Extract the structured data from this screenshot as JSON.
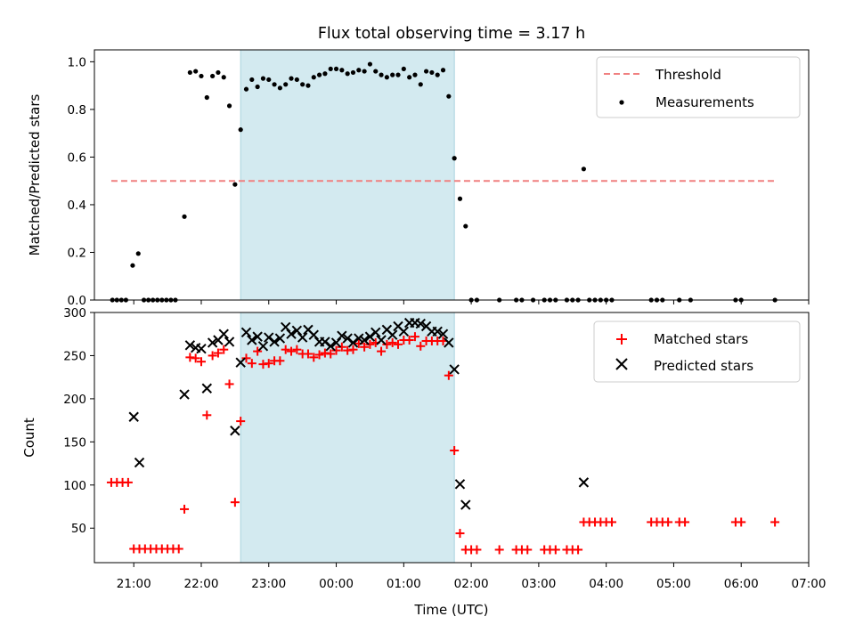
{
  "chart_data": [
    {
      "type": "scatter",
      "title": "Flux total observing time = 3.17 h",
      "xlabel": "",
      "ylabel": "Matched/Predicted stars",
      "ylim": [
        0,
        1.05
      ],
      "xlim": [
        "20:25",
        "07:00"
      ],
      "yticks": [
        "0.0",
        "0.2",
        "0.4",
        "0.6",
        "0.8",
        "1.0"
      ],
      "grid": false,
      "legend_position": "top-right",
      "observing_window": [
        "22:35",
        "01:45"
      ],
      "observing_window_color": "#d3eaf0",
      "threshold": {
        "name": "Threshold",
        "y": 0.5,
        "x_range": [
          "20:40",
          "06:30"
        ],
        "color": "#f08080",
        "style": "dashed"
      },
      "series": [
        {
          "name": "Measurements",
          "color": "#000000",
          "marker": "dot",
          "points": [
            [
              "20:41",
              0.0
            ],
            [
              "20:45",
              0.0
            ],
            [
              "20:49",
              0.0
            ],
            [
              "20:53",
              0.0
            ],
            [
              "20:59",
              0.145
            ],
            [
              "21:04",
              0.195
            ],
            [
              "21:09",
              0.0
            ],
            [
              "21:13",
              0.0
            ],
            [
              "21:17",
              0.0
            ],
            [
              "21:21",
              0.0
            ],
            [
              "21:25",
              0.0
            ],
            [
              "21:29",
              0.0
            ],
            [
              "21:33",
              0.0
            ],
            [
              "21:37",
              0.0
            ],
            [
              "21:45",
              0.35
            ],
            [
              "21:50",
              0.955
            ],
            [
              "21:55",
              0.96
            ],
            [
              "22:00",
              0.94
            ],
            [
              "22:05",
              0.85
            ],
            [
              "22:10",
              0.94
            ],
            [
              "22:15",
              0.955
            ],
            [
              "22:20",
              0.935
            ],
            [
              "22:25",
              0.815
            ],
            [
              "22:30",
              0.485
            ],
            [
              "22:35",
              0.715
            ],
            [
              "22:40",
              0.885
            ],
            [
              "22:45",
              0.925
            ],
            [
              "22:50",
              0.895
            ],
            [
              "22:55",
              0.93
            ],
            [
              "23:00",
              0.925
            ],
            [
              "23:05",
              0.905
            ],
            [
              "23:10",
              0.89
            ],
            [
              "23:15",
              0.905
            ],
            [
              "23:20",
              0.93
            ],
            [
              "23:25",
              0.925
            ],
            [
              "23:30",
              0.905
            ],
            [
              "23:35",
              0.9
            ],
            [
              "23:40",
              0.935
            ],
            [
              "23:45",
              0.945
            ],
            [
              "23:50",
              0.95
            ],
            [
              "23:55",
              0.97
            ],
            [
              "00:00",
              0.97
            ],
            [
              "00:05",
              0.965
            ],
            [
              "00:10",
              0.95
            ],
            [
              "00:15",
              0.955
            ],
            [
              "00:20",
              0.965
            ],
            [
              "00:25",
              0.96
            ],
            [
              "00:30",
              0.99
            ],
            [
              "00:35",
              0.96
            ],
            [
              "00:40",
              0.945
            ],
            [
              "00:45",
              0.935
            ],
            [
              "00:50",
              0.945
            ],
            [
              "00:55",
              0.945
            ],
            [
              "01:00",
              0.97
            ],
            [
              "01:05",
              0.935
            ],
            [
              "01:10",
              0.945
            ],
            [
              "01:15",
              0.905
            ],
            [
              "01:20",
              0.96
            ],
            [
              "01:25",
              0.955
            ],
            [
              "01:30",
              0.945
            ],
            [
              "01:35",
              0.965
            ],
            [
              "01:40",
              0.855
            ],
            [
              "01:45",
              0.595
            ],
            [
              "01:50",
              0.425
            ],
            [
              "01:55",
              0.31
            ],
            [
              "02:00",
              0.0
            ],
            [
              "02:05",
              0.0
            ],
            [
              "02:25",
              0.0
            ],
            [
              "02:40",
              0.0
            ],
            [
              "02:45",
              0.0
            ],
            [
              "02:55",
              0.0
            ],
            [
              "03:05",
              0.0
            ],
            [
              "03:10",
              0.0
            ],
            [
              "03:15",
              0.0
            ],
            [
              "03:25",
              0.0
            ],
            [
              "03:30",
              0.0
            ],
            [
              "03:35",
              0.0
            ],
            [
              "03:45",
              0.0
            ],
            [
              "03:50",
              0.0
            ],
            [
              "03:55",
              0.0
            ],
            [
              "04:00",
              0.0
            ],
            [
              "04:05",
              0.0
            ],
            [
              "03:40",
              0.55
            ],
            [
              "04:40",
              0.0
            ],
            [
              "04:45",
              0.0
            ],
            [
              "04:50",
              0.0
            ],
            [
              "05:05",
              0.0
            ],
            [
              "05:15",
              0.0
            ],
            [
              "05:55",
              0.0
            ],
            [
              "06:00",
              0.0
            ],
            [
              "06:30",
              0.0
            ]
          ]
        }
      ]
    },
    {
      "type": "scatter",
      "title": "",
      "xlabel": "Time (UTC)",
      "ylabel": "Count",
      "ylim": [
        10,
        300
      ],
      "xlim": [
        "20:25",
        "07:00"
      ],
      "yticks": [
        "50",
        "100",
        "150",
        "200",
        "250",
        "300"
      ],
      "xticks": [
        "21:00",
        "22:00",
        "23:00",
        "00:00",
        "01:00",
        "02:00",
        "03:00",
        "04:00",
        "05:00",
        "06:00",
        "07:00"
      ],
      "grid": false,
      "legend_position": "top-right",
      "observing_window": [
        "22:35",
        "01:45"
      ],
      "observing_window_color": "#d3eaf0",
      "series": [
        {
          "name": "Matched stars",
          "color": "#ff0000",
          "marker": "plus",
          "points": [
            [
              "20:40",
              103
            ],
            [
              "20:45",
              103
            ],
            [
              "20:50",
              103
            ],
            [
              "20:55",
              103
            ],
            [
              "21:00",
              26
            ],
            [
              "21:05",
              26
            ],
            [
              "21:10",
              26
            ],
            [
              "21:15",
              26
            ],
            [
              "21:20",
              26
            ],
            [
              "21:25",
              26
            ],
            [
              "21:30",
              26
            ],
            [
              "21:35",
              26
            ],
            [
              "21:40",
              26
            ],
            [
              "21:45",
              72
            ],
            [
              "21:50",
              248
            ],
            [
              "21:55",
              247
            ],
            [
              "22:00",
              243
            ],
            [
              "22:05",
              181
            ],
            [
              "22:10",
              250
            ],
            [
              "22:15",
              253
            ],
            [
              "22:20",
              257
            ],
            [
              "22:25",
              217
            ],
            [
              "22:30",
              80
            ],
            [
              "22:35",
              174
            ],
            [
              "22:40",
              247
            ],
            [
              "22:45",
              241
            ],
            [
              "22:50",
              255
            ],
            [
              "22:55",
              240
            ],
            [
              "23:00",
              241
            ],
            [
              "23:05",
              244
            ],
            [
              "23:10",
              244
            ],
            [
              "23:15",
              257
            ],
            [
              "23:20",
              255
            ],
            [
              "23:25",
              257
            ],
            [
              "23:30",
              252
            ],
            [
              "23:35",
              252
            ],
            [
              "23:40",
              248
            ],
            [
              "23:45",
              251
            ],
            [
              "23:50",
              253
            ],
            [
              "23:55",
              252
            ],
            [
              "00:00",
              256
            ],
            [
              "00:05",
              260
            ],
            [
              "00:10",
              256
            ],
            [
              "00:15",
              257
            ],
            [
              "00:20",
              264
            ],
            [
              "00:25",
              260
            ],
            [
              "00:30",
              263
            ],
            [
              "00:35",
              265
            ],
            [
              "00:40",
              255
            ],
            [
              "00:45",
              263
            ],
            [
              "00:50",
              265
            ],
            [
              "00:55",
              263
            ],
            [
              "01:00",
              268
            ],
            [
              "01:05",
              268
            ],
            [
              "01:10",
              272
            ],
            [
              "01:15",
              261
            ],
            [
              "01:20",
              267
            ],
            [
              "01:25",
              267
            ],
            [
              "01:30",
              267
            ],
            [
              "01:35",
              267
            ],
            [
              "01:40",
              227
            ],
            [
              "01:45",
              140
            ],
            [
              "01:50",
              44
            ],
            [
              "01:55",
              25
            ],
            [
              "02:00",
              25
            ],
            [
              "02:05",
              25
            ],
            [
              "02:25",
              25
            ],
            [
              "02:40",
              25
            ],
            [
              "02:45",
              25
            ],
            [
              "02:50",
              25
            ],
            [
              "03:05",
              25
            ],
            [
              "03:10",
              25
            ],
            [
              "03:15",
              25
            ],
            [
              "03:25",
              25
            ],
            [
              "03:30",
              25
            ],
            [
              "03:35",
              25
            ],
            [
              "03:40",
              57
            ],
            [
              "03:45",
              57
            ],
            [
              "03:50",
              57
            ],
            [
              "03:55",
              57
            ],
            [
              "04:00",
              57
            ],
            [
              "04:05",
              57
            ],
            [
              "04:40",
              57
            ],
            [
              "04:45",
              57
            ],
            [
              "04:50",
              57
            ],
            [
              "04:55",
              57
            ],
            [
              "05:05",
              57
            ],
            [
              "05:10",
              57
            ],
            [
              "05:55",
              57
            ],
            [
              "06:00",
              57
            ],
            [
              "06:30",
              57
            ]
          ]
        },
        {
          "name": "Predicted stars",
          "color": "#000000",
          "marker": "x",
          "points": [
            [
              "21:00",
              179
            ],
            [
              "21:05",
              126
            ],
            [
              "21:45",
              205
            ],
            [
              "21:50",
              262
            ],
            [
              "21:55",
              259
            ],
            [
              "22:00",
              258
            ],
            [
              "22:05",
              212
            ],
            [
              "22:10",
              265
            ],
            [
              "22:15",
              268
            ],
            [
              "22:20",
              275
            ],
            [
              "22:25",
              266
            ],
            [
              "22:30",
              163
            ],
            [
              "22:35",
              242
            ],
            [
              "22:40",
              277
            ],
            [
              "22:45",
              268
            ],
            [
              "22:50",
              272
            ],
            [
              "22:55",
              261
            ],
            [
              "23:00",
              271
            ],
            [
              "23:05",
              266
            ],
            [
              "23:10",
              270
            ],
            [
              "23:15",
              283
            ],
            [
              "23:20",
              275
            ],
            [
              "23:25",
              279
            ],
            [
              "23:30",
              271
            ],
            [
              "23:35",
              280
            ],
            [
              "23:40",
              274
            ],
            [
              "23:45",
              266
            ],
            [
              "23:50",
              266
            ],
            [
              "23:55",
              261
            ],
            [
              "00:00",
              265
            ],
            [
              "00:05",
              273
            ],
            [
              "00:10",
              270
            ],
            [
              "00:15",
              265
            ],
            [
              "00:20",
              270
            ],
            [
              "00:25",
              268
            ],
            [
              "00:30",
              272
            ],
            [
              "00:35",
              277
            ],
            [
              "00:40",
              268
            ],
            [
              "00:45",
              280
            ],
            [
              "00:50",
              274
            ],
            [
              "00:55",
              284
            ],
            [
              "01:00",
              278
            ],
            [
              "01:05",
              288
            ],
            [
              "01:10",
              288
            ],
            [
              "01:15",
              287
            ],
            [
              "01:20",
              284
            ],
            [
              "01:25",
              278
            ],
            [
              "01:30",
              278
            ],
            [
              "01:35",
              275
            ],
            [
              "01:40",
              265
            ],
            [
              "01:45",
              234
            ],
            [
              "01:50",
              101
            ],
            [
              "01:55",
              77
            ],
            [
              "03:40",
              103
            ]
          ]
        }
      ]
    }
  ]
}
